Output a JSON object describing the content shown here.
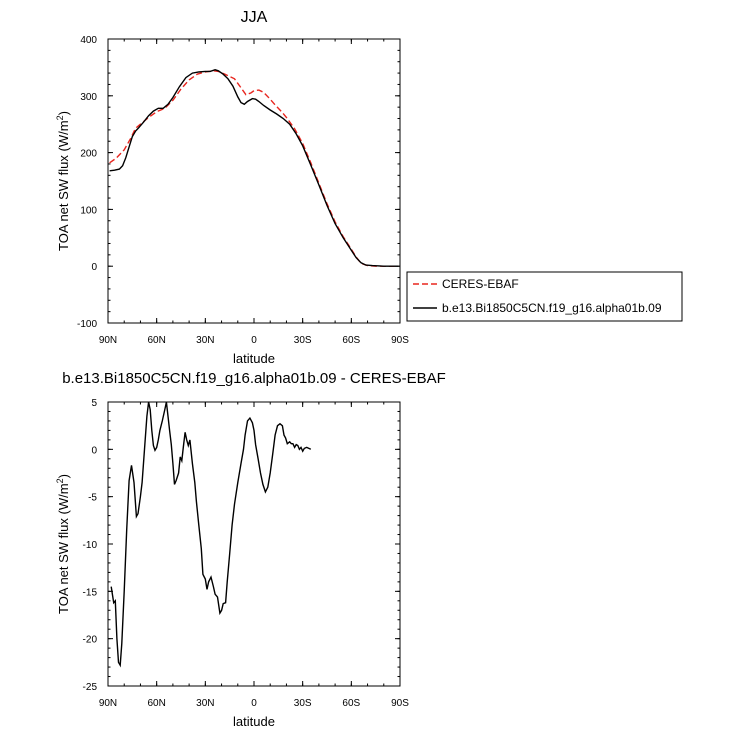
{
  "chart_data": [
    {
      "type": "line",
      "title": "JJA",
      "xlabel": "latitude",
      "ylabel_main": "TOA net SW flux (W/m",
      "ylabel_sup": "2",
      "ylabel_close": ")",
      "xlim": [
        90,
        -90
      ],
      "ylim": [
        -100,
        400
      ],
      "x_ticks": [
        {
          "value": 90,
          "label": "90N"
        },
        {
          "value": 60,
          "label": "60N"
        },
        {
          "value": 30,
          "label": "30N"
        },
        {
          "value": 0,
          "label": "0"
        },
        {
          "value": -30,
          "label": "30S"
        },
        {
          "value": -60,
          "label": "60S"
        },
        {
          "value": -90,
          "label": "90S"
        }
      ],
      "y_ticks": [
        -100,
        0,
        100,
        200,
        300,
        400
      ],
      "grid": false,
      "legend_position": "right-bottom, outside",
      "series": [
        {
          "name": "CERES-EBAF",
          "color": "#e8261f",
          "dash": true,
          "points": [
            [
              89,
              182
            ],
            [
              85,
              190
            ],
            [
              80,
              205
            ],
            [
              76,
              225
            ],
            [
              73,
              243
            ],
            [
              70,
              250
            ],
            [
              65,
              262
            ],
            [
              60,
              272
            ],
            [
              55,
              278
            ],
            [
              50,
              292
            ],
            [
              45,
              312
            ],
            [
              40,
              328
            ],
            [
              35,
              338
            ],
            [
              30,
              342
            ],
            [
              25,
              344
            ],
            [
              22,
              343
            ],
            [
              18,
              338
            ],
            [
              12,
              330
            ],
            [
              8,
              314
            ],
            [
              5,
              302
            ],
            [
              2,
              305
            ],
            [
              0,
              309
            ],
            [
              -3,
              310
            ],
            [
              -6,
              306
            ],
            [
              -10,
              294
            ],
            [
              -13,
              284
            ],
            [
              -17,
              272
            ],
            [
              -20,
              262
            ],
            [
              -25,
              242
            ],
            [
              -30,
              216
            ],
            [
              -35,
              182
            ],
            [
              -40,
              146
            ],
            [
              -45,
              110
            ],
            [
              -50,
              78
            ],
            [
              -55,
              52
            ],
            [
              -60,
              30
            ],
            [
              -63,
              16
            ],
            [
              -66,
              5
            ],
            [
              -70,
              1
            ],
            [
              -75,
              0
            ],
            [
              -80,
              0
            ],
            [
              -89,
              0
            ]
          ]
        },
        {
          "name": "b.e13.Bi1850C5CN.f19_g16.alpha01b.09",
          "color": "#000000",
          "dash": false,
          "points": [
            [
              89,
              168
            ],
            [
              86,
              169
            ],
            [
              83,
              171
            ],
            [
              81,
              177
            ],
            [
              79,
              191
            ],
            [
              77,
              210
            ],
            [
              75,
              228
            ],
            [
              73,
              238
            ],
            [
              71,
              244
            ],
            [
              68,
              254
            ],
            [
              65,
              265
            ],
            [
              62,
              273
            ],
            [
              59,
              278
            ],
            [
              56,
              278
            ],
            [
              53,
              285
            ],
            [
              50,
              297
            ],
            [
              46,
              316
            ],
            [
              42,
              332
            ],
            [
              38,
              340
            ],
            [
              34,
              342
            ],
            [
              30,
              343
            ],
            [
              27,
              343
            ],
            [
              24,
              346
            ],
            [
              22,
              344
            ],
            [
              19,
              338
            ],
            [
              16,
              330
            ],
            [
              13,
              317
            ],
            [
              10,
              298
            ],
            [
              8,
              288
            ],
            [
              6,
              285
            ],
            [
              4,
              290
            ],
            [
              1,
              295
            ],
            [
              -1,
              294
            ],
            [
              -3,
              290
            ],
            [
              -6,
              283
            ],
            [
              -10,
              275
            ],
            [
              -14,
              268
            ],
            [
              -18,
              260
            ],
            [
              -22,
              250
            ],
            [
              -26,
              233
            ],
            [
              -30,
              212
            ],
            [
              -35,
              178
            ],
            [
              -40,
              143
            ],
            [
              -45,
              107
            ],
            [
              -50,
              75
            ],
            [
              -55,
              50
            ],
            [
              -60,
              28
            ],
            [
              -63,
              15
            ],
            [
              -66,
              6
            ],
            [
              -69,
              2
            ],
            [
              -73,
              1
            ],
            [
              -80,
              0
            ],
            [
              -89,
              0
            ]
          ]
        }
      ]
    },
    {
      "type": "line",
      "title": "b.e13.Bi1850C5CN.f19_g16.alpha01b.09 - CERES-EBAF",
      "xlabel": "latitude",
      "ylabel_main": "TOA net SW flux (W/m",
      "ylabel_sup": "2",
      "ylabel_close": ")",
      "xlim": [
        90,
        -90
      ],
      "ylim": [
        -25,
        5
      ],
      "x_ticks": [
        {
          "value": 90,
          "label": "90N"
        },
        {
          "value": 60,
          "label": "60N"
        },
        {
          "value": 30,
          "label": "30N"
        },
        {
          "value": 0,
          "label": "0"
        },
        {
          "value": -30,
          "label": "30S"
        },
        {
          "value": -60,
          "label": "60S"
        },
        {
          "value": -90,
          "label": "90S"
        }
      ],
      "y_ticks": [
        -25,
        -20,
        -15,
        -10,
        -5,
        0,
        5
      ],
      "grid": false,
      "series": [
        {
          "name": "",
          "color": "#000000",
          "dash": false,
          "points": [
            [
              88,
              -14.5
            ],
            [
              86.5,
              -16.2
            ],
            [
              85.5,
              -16.0
            ],
            [
              84.5,
              -20.0
            ],
            [
              83.5,
              -22.5
            ],
            [
              82.5,
              -22.8
            ],
            [
              81.5,
              -20.5
            ],
            [
              80,
              -15.0
            ],
            [
              78.5,
              -8.5
            ],
            [
              77,
              -3.3
            ],
            [
              75.5,
              -1.7
            ],
            [
              74,
              -3.5
            ],
            [
              72.5,
              -7.1
            ],
            [
              71.5,
              -6.8
            ],
            [
              70,
              -5.0
            ],
            [
              69,
              -3.5
            ],
            [
              67.5,
              0.0
            ],
            [
              66,
              3.5
            ],
            [
              65,
              5.0
            ],
            [
              64,
              4.2
            ],
            [
              63,
              2.0
            ],
            [
              62,
              0.4
            ],
            [
              61,
              -0.1
            ],
            [
              60,
              0.2
            ],
            [
              59,
              1.0
            ],
            [
              58,
              2.0
            ],
            [
              56.5,
              3.0
            ],
            [
              55,
              4.2
            ],
            [
              54,
              5.0
            ],
            [
              53,
              3.5
            ],
            [
              52,
              2.0
            ],
            [
              51,
              0.5
            ],
            [
              50,
              -1.5
            ],
            [
              49,
              -3.7
            ],
            [
              48,
              -3.3
            ],
            [
              46.5,
              -2.5
            ],
            [
              45.5,
              -0.8
            ],
            [
              44.5,
              -1.2
            ],
            [
              43.5,
              0.3
            ],
            [
              42.5,
              1.8
            ],
            [
              41.5,
              1.0
            ],
            [
              40.5,
              0.4
            ],
            [
              39.5,
              1.0
            ],
            [
              38,
              -1.5
            ],
            [
              36.5,
              -3.5
            ],
            [
              35.5,
              -5.5
            ],
            [
              34,
              -8.0
            ],
            [
              32.5,
              -10.5
            ],
            [
              31.5,
              -13.2
            ],
            [
              30,
              -13.7
            ],
            [
              29,
              -14.8
            ],
            [
              28,
              -14.0
            ],
            [
              26.5,
              -13.5
            ],
            [
              25,
              -14.5
            ],
            [
              24,
              -15.3
            ],
            [
              22.5,
              -15.6
            ],
            [
              21,
              -17.3
            ],
            [
              20,
              -17.0
            ],
            [
              19,
              -16.3
            ],
            [
              17.5,
              -16.2
            ],
            [
              16.5,
              -14.0
            ],
            [
              15,
              -11.0
            ],
            [
              13.5,
              -8.0
            ],
            [
              12,
              -5.8
            ],
            [
              10,
              -3.5
            ],
            [
              8,
              -1.5
            ],
            [
              6.5,
              0.0
            ],
            [
              5.5,
              1.5
            ],
            [
              4,
              3.0
            ],
            [
              2.5,
              3.3
            ],
            [
              1,
              2.8
            ],
            [
              0,
              2.0
            ],
            [
              -1,
              0.5
            ],
            [
              -2.5,
              -1.0
            ],
            [
              -4,
              -2.5
            ],
            [
              -5.5,
              -3.7
            ],
            [
              -7,
              -4.5
            ],
            [
              -8.5,
              -4.0
            ],
            [
              -10,
              -2.5
            ],
            [
              -11.5,
              -0.5
            ],
            [
              -13,
              1.5
            ],
            [
              -14.5,
              2.5
            ],
            [
              -16,
              2.7
            ],
            [
              -17.5,
              2.5
            ],
            [
              -18.5,
              1.5
            ],
            [
              -19.5,
              1.2
            ],
            [
              -20.5,
              0.6
            ],
            [
              -22,
              0.8
            ],
            [
              -23,
              0.6
            ],
            [
              -24,
              0.6
            ],
            [
              -25,
              0.2
            ],
            [
              -26,
              0.5
            ],
            [
              -27,
              0.4
            ],
            [
              -28,
              0.0
            ],
            [
              -29,
              0.2
            ],
            [
              -30,
              -0.2
            ],
            [
              -31,
              0.1
            ],
            [
              -32.5,
              0.2
            ],
            [
              -35,
              0.0
            ]
          ]
        }
      ]
    }
  ]
}
